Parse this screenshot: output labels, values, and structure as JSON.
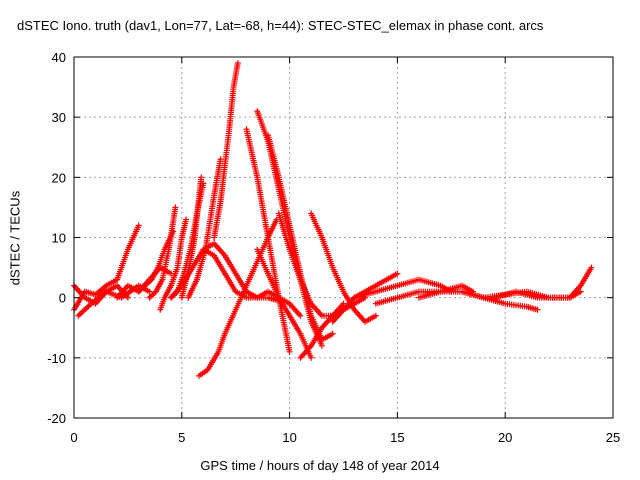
{
  "chart_data": {
    "type": "scatter",
    "title": "dSTEC Iono. truth (dav1, Lon=77, Lat=-68, h=44): STEC-STEC_elemax in phase cont. arcs",
    "xlabel": "GPS time / hours of day 148 of year 2014",
    "ylabel": "dSTEC  / TECUs",
    "xlim": [
      0,
      25
    ],
    "ylim": [
      -20,
      40
    ],
    "x_ticks": [
      "0",
      "5",
      "10",
      "15",
      "20",
      "25"
    ],
    "y_ticks": [
      "-20",
      "-10",
      "0",
      "10",
      "20",
      "30",
      "40"
    ],
    "grid": true,
    "legend": "none",
    "marker": "+",
    "color": "#ff0000",
    "series": [
      {
        "x": [
          0.0,
          0.5,
          1.0,
          1.5,
          2.0,
          2.5,
          3.0
        ],
        "y": [
          -2,
          1,
          0.5,
          2,
          3,
          8,
          12
        ]
      },
      {
        "x": [
          0.0,
          0.5,
          1.0,
          1.5,
          2.0,
          2.5
        ],
        "y": [
          2,
          0,
          -1,
          1,
          2,
          0
        ]
      },
      {
        "x": [
          0.2,
          0.8,
          1.5,
          2.2,
          3.0,
          3.5
        ],
        "y": [
          -3,
          -1,
          1,
          0,
          2,
          1
        ]
      },
      {
        "x": [
          2.0,
          2.5,
          3.0,
          3.5,
          4.0,
          4.5
        ],
        "y": [
          0,
          2,
          1,
          3,
          5,
          4
        ]
      },
      {
        "x": [
          3.0,
          3.3,
          3.6,
          3.9,
          4.2,
          4.6
        ],
        "y": [
          1,
          2,
          3,
          5,
          8,
          11
        ]
      },
      {
        "x": [
          3.5,
          3.8,
          4.1,
          4.4,
          4.7
        ],
        "y": [
          0,
          1,
          3,
          8,
          15
        ]
      },
      {
        "x": [
          4.0,
          4.2,
          4.5,
          4.8,
          5.0,
          5.2
        ],
        "y": [
          -2,
          0,
          2,
          5,
          10,
          13
        ]
      },
      {
        "x": [
          4.5,
          4.8,
          5.1,
          5.4,
          5.7,
          6.0
        ],
        "y": [
          0,
          1,
          4,
          8,
          14,
          19
        ]
      },
      {
        "x": [
          5.0,
          5.2,
          5.4,
          5.6,
          5.9
        ],
        "y": [
          0,
          3,
          6,
          10,
          20
        ]
      },
      {
        "x": [
          5.3,
          5.7,
          6.1,
          6.5,
          6.8
        ],
        "y": [
          0,
          3,
          8,
          17,
          23
        ]
      },
      {
        "x": [
          4.5,
          5.0,
          5.5,
          6.0,
          6.5,
          7.0,
          7.5,
          8.0,
          8.5,
          9.0,
          9.5
        ],
        "y": [
          0,
          2,
          5,
          8,
          9,
          7,
          4,
          1,
          0,
          0,
          -0.5
        ]
      },
      {
        "x": [
          6.5,
          6.8,
          7.0,
          7.2,
          7.4,
          7.6
        ],
        "y": [
          10,
          16,
          22,
          28,
          35,
          39
        ]
      },
      {
        "x": [
          5.8,
          6.2,
          6.7,
          7.0,
          7.5,
          8.0,
          8.5,
          9.0,
          9.4
        ],
        "y": [
          -13,
          -12,
          -9,
          -6,
          -2,
          2,
          6,
          10,
          13
        ]
      },
      {
        "x": [
          6.0,
          6.5,
          7.0,
          7.5,
          8.0,
          8.5,
          9.0,
          9.5,
          10.0,
          10.5
        ],
        "y": [
          8,
          7,
          4,
          1,
          0,
          0,
          1,
          0,
          -1,
          -3
        ]
      },
      {
        "x": [
          8.0,
          8.5,
          9.0,
          9.5,
          10.0
        ],
        "y": [
          28,
          20,
          10,
          0,
          -9
        ]
      },
      {
        "x": [
          8.5,
          9.0,
          9.5,
          10.0,
          10.5,
          11.0,
          11.5
        ],
        "y": [
          31,
          26,
          18,
          10,
          3,
          -4,
          -8
        ]
      },
      {
        "x": [
          9.0,
          9.5,
          10.0,
          10.5,
          11.0,
          11.5,
          12.0
        ],
        "y": [
          27,
          20,
          12,
          4,
          -3,
          -7,
          -6
        ]
      },
      {
        "x": [
          8.5,
          9.0,
          9.5,
          10.0,
          10.5,
          11.0
        ],
        "y": [
          8,
          4,
          0,
          -3,
          -6,
          -10
        ]
      },
      {
        "x": [
          9.5,
          10.0,
          10.5,
          11.0,
          11.5,
          12.0,
          12.5
        ],
        "y": [
          14,
          8,
          3,
          -1,
          -3,
          -3,
          -1
        ]
      },
      {
        "x": [
          10.5,
          11.0,
          11.5,
          12.0,
          12.5,
          13.0,
          13.5
        ],
        "y": [
          -10,
          -8,
          -5,
          -3,
          -2,
          -1,
          0
        ]
      },
      {
        "x": [
          11.0,
          11.5,
          12.0,
          12.5,
          13.0,
          13.5,
          14.0
        ],
        "y": [
          14,
          10,
          5,
          1,
          -2,
          -4,
          -3
        ]
      },
      {
        "x": [
          12.0,
          12.5,
          13.0,
          13.5,
          14.0,
          14.5,
          15.0
        ],
        "y": [
          -4,
          -2,
          0,
          1,
          2,
          3,
          4
        ]
      },
      {
        "x": [
          13.0,
          14.0,
          15.0,
          16.0,
          17.0,
          17.5
        ],
        "y": [
          0,
          1,
          2,
          3,
          2,
          1
        ]
      },
      {
        "x": [
          14.0,
          15.0,
          16.0,
          17.0,
          18.0,
          18.5
        ],
        "y": [
          -1,
          0,
          1,
          1,
          2,
          1
        ]
      },
      {
        "x": [
          16.0,
          17.0,
          18.0,
          19.0,
          20.0,
          21.0,
          21.5
        ],
        "y": [
          0,
          1,
          1,
          0,
          -1,
          -1.5,
          -2
        ]
      },
      {
        "x": [
          18.0,
          19.0,
          20.0,
          21.0,
          22.0,
          23.0,
          23.5
        ],
        "y": [
          1,
          0,
          0.5,
          1,
          0,
          0,
          1
        ]
      },
      {
        "x": [
          19.5,
          20.5,
          21.5,
          22.5,
          23.0,
          23.5,
          24.0
        ],
        "y": [
          0,
          1,
          0,
          0,
          0,
          2,
          5
        ]
      }
    ]
  }
}
